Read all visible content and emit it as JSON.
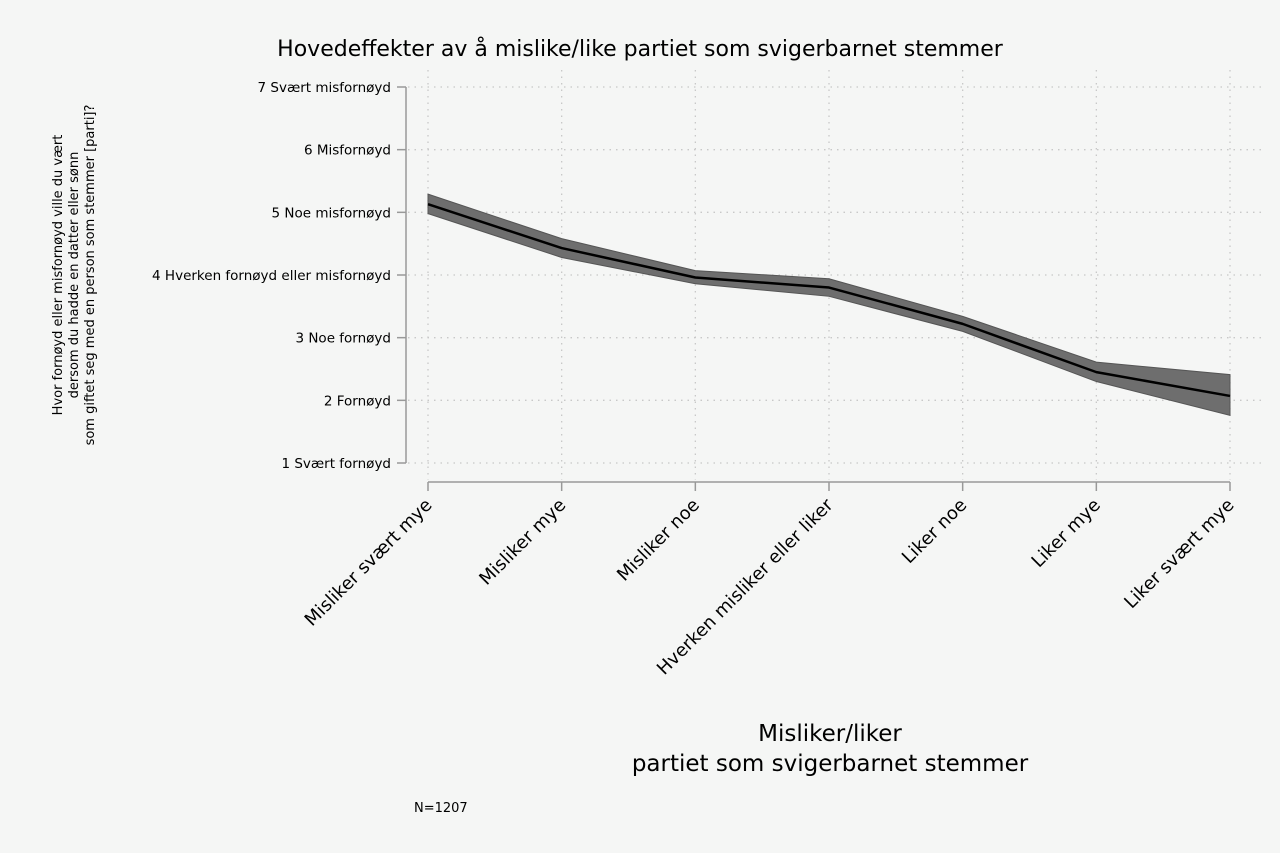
{
  "chart_data": {
    "type": "line",
    "title": "Hovedeffekter av å mislike/like partiet som svigerbarnet stemmer",
    "xlabel_lines": [
      "Misliker/liker",
      "partiet som svigerbarnet stemmer"
    ],
    "ylabel_lines": [
      "Hvor fornøyd eller misfornøyd ville du vært",
      "dersom du hadde en datter eller sønn",
      "som giftet seg med en person som stemmer [parti]?"
    ],
    "categories": [
      "Misliker svært mye",
      "Misliker mye",
      "Misliker noe",
      "Hverken misliker eller liker",
      "Liker noe",
      "Liker mye",
      "Liker svært mye"
    ],
    "y_ticks": [
      {
        "value": 1,
        "label": "1 Svært fornøyd"
      },
      {
        "value": 2,
        "label": "2 Fornøyd"
      },
      {
        "value": 3,
        "label": "3 Noe fornøyd"
      },
      {
        "value": 4,
        "label": "4 Hverken fornøyd eller misfornøyd"
      },
      {
        "value": 5,
        "label": "5 Noe misfornøyd"
      },
      {
        "value": 6,
        "label": "6 Misfornøyd"
      },
      {
        "value": 7,
        "label": "7 Svært misfornøyd"
      }
    ],
    "ylim": [
      1,
      7
    ],
    "series": [
      {
        "values": [
          5.13,
          4.43,
          3.96,
          3.8,
          3.22,
          2.45,
          2.07
        ],
        "lower": [
          4.98,
          4.28,
          3.86,
          3.66,
          3.1,
          2.3,
          1.76
        ],
        "upper": [
          5.29,
          4.58,
          4.07,
          3.94,
          3.34,
          2.61,
          2.41
        ]
      }
    ],
    "grid": true,
    "note": "N=1207",
    "colors": {
      "line": "#000000",
      "band": "#6e6e6e",
      "axis": "#999999",
      "grid": "#c8c8c8",
      "background": "#f5f6f5"
    }
  }
}
